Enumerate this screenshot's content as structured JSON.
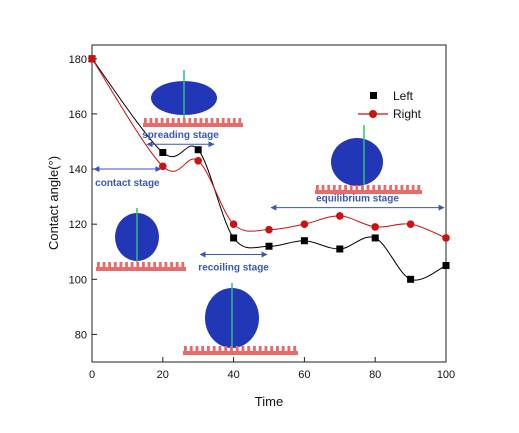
{
  "chart_data": {
    "type": "line",
    "xlabel": "Time",
    "ylabel": "Contact angle(°)",
    "xlim": [
      0,
      100
    ],
    "ylim": [
      70,
      185
    ],
    "xticks": [
      0,
      20,
      40,
      60,
      80,
      100
    ],
    "yticks": [
      80,
      100,
      120,
      140,
      160,
      180
    ],
    "legend_position": "top-right",
    "series": [
      {
        "name": "Left",
        "marker": "square",
        "color": "#000000",
        "x": [
          0,
          20,
          30,
          40,
          50,
          60,
          70,
          80,
          90,
          100
        ],
        "y": [
          180,
          146,
          147,
          115,
          112,
          114,
          111,
          115,
          100,
          105
        ]
      },
      {
        "name": "Right",
        "marker": "circle",
        "color": "#cc1111",
        "x": [
          0,
          20,
          30,
          40,
          50,
          60,
          70,
          80,
          90,
          100
        ],
        "y": [
          180,
          141,
          143,
          120,
          118,
          120,
          123,
          119,
          120,
          115
        ]
      }
    ],
    "annotations": [
      {
        "id": "contact",
        "text": "contact stage",
        "x_range": [
          0,
          20
        ],
        "y": 140
      },
      {
        "id": "spreading",
        "text": "spreading stage",
        "x_range": [
          15,
          35
        ],
        "y": 149
      },
      {
        "id": "recoiling",
        "text": "recoiling stage",
        "x_range": [
          30,
          50
        ],
        "y": 109
      },
      {
        "id": "equilibrium",
        "text": "equilibrium stage",
        "x_range": [
          50,
          100
        ],
        "y": 126
      }
    ]
  },
  "colors": {
    "droplet": "#2236b8",
    "substrate": "#e86b6b",
    "stage_arrow": "#3a57b5",
    "normal_line": "#2fbf7a"
  }
}
